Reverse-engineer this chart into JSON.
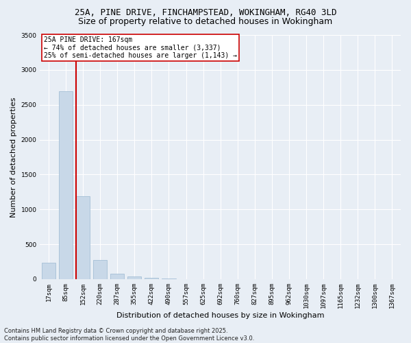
{
  "title_line1": "25A, PINE DRIVE, FINCHAMPSTEAD, WOKINGHAM, RG40 3LD",
  "title_line2": "Size of property relative to detached houses in Wokingham",
  "xlabel": "Distribution of detached houses by size in Wokingham",
  "ylabel": "Number of detached properties",
  "categories": [
    "17sqm",
    "85sqm",
    "152sqm",
    "220sqm",
    "287sqm",
    "355sqm",
    "422sqm",
    "490sqm",
    "557sqm",
    "625sqm",
    "692sqm",
    "760sqm",
    "827sqm",
    "895sqm",
    "962sqm",
    "1030sqm",
    "1097sqm",
    "1165sqm",
    "1232sqm",
    "1300sqm",
    "1367sqm"
  ],
  "values": [
    240,
    2690,
    1190,
    270,
    80,
    35,
    15,
    5,
    0,
    0,
    0,
    0,
    0,
    0,
    0,
    0,
    0,
    0,
    0,
    0,
    0
  ],
  "bar_color": "#c8d8e8",
  "bar_edge_color": "#9ab8d0",
  "vline_color": "#cc0000",
  "vline_x_index": 2,
  "annotation_line1": "25A PINE DRIVE: 167sqm",
  "annotation_line2": "← 74% of detached houses are smaller (3,337)",
  "annotation_line3": "25% of semi-detached houses are larger (1,143) →",
  "annotation_box_facecolor": "#ffffff",
  "annotation_box_edgecolor": "#cc0000",
  "ylim": [
    0,
    3500
  ],
  "yticks": [
    0,
    500,
    1000,
    1500,
    2000,
    2500,
    3000,
    3500
  ],
  "figure_facecolor": "#e8eef5",
  "plot_facecolor": "#e8eef5",
  "grid_color": "#ffffff",
  "title1_fontsize": 9,
  "title2_fontsize": 9,
  "xlabel_fontsize": 8,
  "ylabel_fontsize": 8,
  "tick_fontsize": 6.5,
  "annotation_fontsize": 7,
  "footer_fontsize": 6,
  "footer_line1": "Contains HM Land Registry data © Crown copyright and database right 2025.",
  "footer_line2": "Contains public sector information licensed under the Open Government Licence v3.0."
}
